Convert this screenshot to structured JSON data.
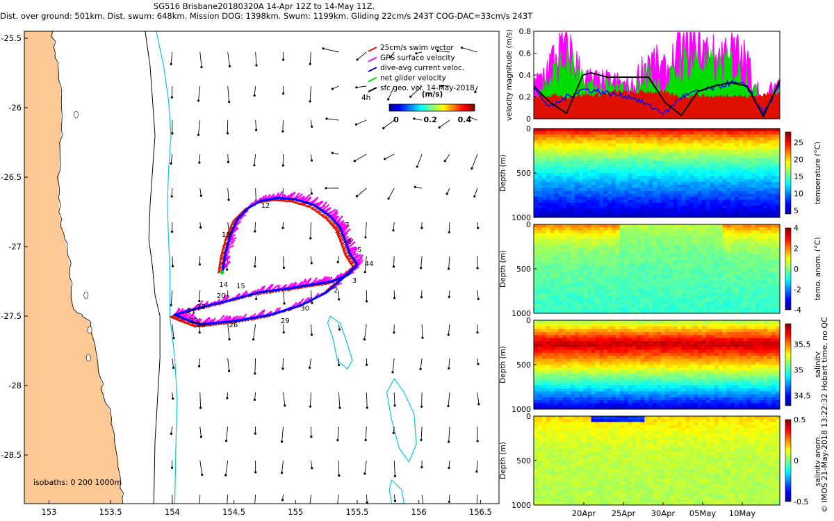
{
  "title_lines": [
    "SG516 Brisbane20180320A 14-Apr 12Z to 14-May 11Z.",
    "Dist. over ground: 501km. Dist. swum: 648km. Mission DOG: 1398km. Swum: 1199km. Gliding 22cm/s 243T COG-DAC=33cm/s 243T"
  ],
  "credit": "© IMOS 21-May-2018 13:22:32 Hobart time. no QC",
  "colors": {
    "land": "#fbc896",
    "coast_line": "#000000",
    "isobath_200": "#000000",
    "isobath_1000": "#00c8e6",
    "swim_vector": "#e01000",
    "gps_velocity": "#ff00ff",
    "dac": "#0000ff",
    "net_velocity": "#00dd00",
    "geo_vector": "#000000"
  },
  "chart_data": [
    {
      "type": "map",
      "name": "track-map",
      "xlim": [
        152.8,
        156.65
      ],
      "ylim": [
        -28.85,
        -25.45
      ],
      "xticks": [
        153,
        153.5,
        154,
        154.5,
        155,
        155.5,
        156,
        156.5
      ],
      "yticks": [
        -25.5,
        -26,
        -26.5,
        -27,
        -27.5,
        -28,
        -28.5
      ],
      "xtick_labels": [
        "153",
        "153.5",
        "154",
        "154.5",
        "155",
        "155.5",
        "156",
        "156.5"
      ],
      "ytick_labels": [
        "-25.5",
        "-26",
        "-26.5",
        "-27",
        "-27.5",
        "-28",
        "-28.5"
      ],
      "legend": {
        "position": "top-right",
        "items": [
          "25cm/s swim vector",
          "GPS surface velocity",
          "dive-avg current veloc.",
          "net glider velocity",
          "sfc geo. vel. 14-May-2018"
        ],
        "note": "4h"
      },
      "colorbar": {
        "label": "(m/s)",
        "ticks": [
          0,
          0.2,
          0.4
        ],
        "tick_labels": [
          "0",
          "0.2",
          "0.4"
        ],
        "range": [
          0,
          0.5
        ]
      },
      "isobath_label": "isobaths: 0   200  1000m",
      "coastline": [
        [
          153.03,
          -25.45
        ],
        [
          153.05,
          -25.6
        ],
        [
          153.08,
          -25.75
        ],
        [
          153.1,
          -25.95
        ],
        [
          153.1,
          -26.15
        ],
        [
          153.09,
          -26.35
        ],
        [
          153.08,
          -26.55
        ],
        [
          153.08,
          -26.75
        ],
        [
          153.13,
          -26.95
        ],
        [
          153.15,
          -27.05
        ],
        [
          153.17,
          -27.15
        ],
        [
          153.18,
          -27.3
        ],
        [
          153.2,
          -27.45
        ],
        [
          153.27,
          -27.5
        ],
        [
          153.34,
          -27.55
        ],
        [
          153.38,
          -27.75
        ],
        [
          153.42,
          -27.95
        ],
        [
          153.45,
          -28.1
        ],
        [
          153.5,
          -28.2
        ],
        [
          153.53,
          -28.35
        ],
        [
          153.56,
          -28.55
        ],
        [
          153.58,
          -28.7
        ],
        [
          153.6,
          -28.85
        ]
      ],
      "isobath_200": [
        [
          153.78,
          -25.45
        ],
        [
          153.82,
          -25.7
        ],
        [
          153.84,
          -25.95
        ],
        [
          153.86,
          -26.2
        ],
        [
          153.84,
          -26.45
        ],
        [
          153.82,
          -26.7
        ],
        [
          153.81,
          -26.95
        ],
        [
          153.84,
          -27.15
        ],
        [
          153.86,
          -27.35
        ],
        [
          153.9,
          -27.5
        ],
        [
          153.9,
          -27.8
        ],
        [
          153.88,
          -28.1
        ],
        [
          153.86,
          -28.4
        ],
        [
          153.85,
          -28.85
        ]
      ],
      "isobath_1000": [
        [
          153.87,
          -25.45
        ],
        [
          153.93,
          -25.7
        ],
        [
          153.97,
          -25.95
        ],
        [
          153.99,
          -26.2
        ],
        [
          153.97,
          -26.45
        ],
        [
          153.96,
          -26.7
        ],
        [
          153.97,
          -26.95
        ],
        [
          153.98,
          -27.15
        ],
        [
          153.98,
          -27.35
        ],
        [
          153.98,
          -27.5
        ],
        [
          154.02,
          -27.8
        ],
        [
          154.04,
          -28.1
        ],
        [
          154.03,
          -28.4
        ],
        [
          154.02,
          -28.85
        ]
      ],
      "islands": [
        [
          [
            155.28,
            -27.5
          ],
          [
            155.36,
            -27.55
          ],
          [
            155.42,
            -27.7
          ],
          [
            155.46,
            -27.82
          ],
          [
            155.42,
            -27.88
          ],
          [
            155.34,
            -27.82
          ],
          [
            155.3,
            -27.65
          ],
          [
            155.26,
            -27.55
          ],
          [
            155.28,
            -27.5
          ]
        ],
        [
          [
            155.8,
            -27.95
          ],
          [
            155.88,
            -28.05
          ],
          [
            155.96,
            -28.2
          ],
          [
            155.98,
            -28.42
          ],
          [
            155.92,
            -28.55
          ],
          [
            155.84,
            -28.45
          ],
          [
            155.78,
            -28.25
          ],
          [
            155.74,
            -28.05
          ],
          [
            155.8,
            -27.95
          ]
        ],
        [
          [
            155.78,
            -28.68
          ],
          [
            155.86,
            -28.75
          ],
          [
            155.88,
            -28.85
          ],
          [
            155.78,
            -28.85
          ],
          [
            155.76,
            -28.75
          ],
          [
            155.78,
            -28.68
          ]
        ]
      ],
      "track": [
        [
          154.41,
          -27.17
        ],
        [
          154.43,
          -27.05
        ],
        [
          154.47,
          -26.92
        ],
        [
          154.53,
          -26.8
        ],
        [
          154.62,
          -26.72
        ],
        [
          154.72,
          -26.67
        ],
        [
          154.85,
          -26.65
        ],
        [
          155.0,
          -26.66
        ],
        [
          155.15,
          -26.7
        ],
        [
          155.28,
          -26.78
        ],
        [
          155.36,
          -26.86
        ],
        [
          155.4,
          -26.95
        ],
        [
          155.44,
          -27.05
        ],
        [
          155.5,
          -27.13
        ],
        [
          155.43,
          -27.2
        ],
        [
          155.3,
          -27.25
        ],
        [
          155.15,
          -27.27
        ],
        [
          154.95,
          -27.3
        ],
        [
          154.7,
          -27.33
        ],
        [
          154.45,
          -27.39
        ],
        [
          154.22,
          -27.44
        ],
        [
          154.02,
          -27.49
        ],
        [
          154.1,
          -27.52
        ],
        [
          154.22,
          -27.56
        ],
        [
          154.35,
          -27.55
        ],
        [
          154.55,
          -27.53
        ],
        [
          154.8,
          -27.49
        ],
        [
          155.05,
          -27.42
        ],
        [
          155.25,
          -27.33
        ],
        [
          155.38,
          -27.23
        ],
        [
          155.49,
          -27.14
        ]
      ],
      "track_labels": [
        {
          "text": "12",
          "lon": 154.72,
          "lat": -26.72
        },
        {
          "text": "13",
          "lon": 154.4,
          "lat": -26.93
        },
        {
          "text": "7",
          "lon": 155.4,
          "lat": -26.86
        },
        {
          "text": "6",
          "lon": 155.42,
          "lat": -26.98
        },
        {
          "text": "5",
          "lon": 155.5,
          "lat": -27.04
        },
        {
          "text": "44",
          "lon": 155.56,
          "lat": -27.14
        },
        {
          "text": "3",
          "lon": 155.46,
          "lat": -27.26
        },
        {
          "text": "2",
          "lon": 155.31,
          "lat": -27.33
        },
        {
          "text": "14",
          "lon": 154.38,
          "lat": -27.29
        },
        {
          "text": "15",
          "lon": 154.52,
          "lat": -27.3
        },
        {
          "text": "20",
          "lon": 154.36,
          "lat": -27.37
        },
        {
          "text": "15",
          "lon": 154.2,
          "lat": -27.45
        },
        {
          "text": "21",
          "lon": 154.12,
          "lat": -27.48
        },
        {
          "text": "23",
          "lon": 154.14,
          "lat": -27.55
        },
        {
          "text": "24",
          "lon": 154.2,
          "lat": -27.58
        },
        {
          "text": "26",
          "lon": 154.46,
          "lat": -27.58
        },
        {
          "text": "29",
          "lon": 154.88,
          "lat": -27.55
        },
        {
          "text": "30",
          "lon": 155.04,
          "lat": -27.46
        }
      ]
    },
    {
      "type": "line",
      "name": "velocity-magnitude",
      "ylabel": "velocity magnitude (m/s)",
      "ylim": [
        0,
        0.8
      ],
      "yticks": [
        0,
        0.2,
        0.4,
        0.6,
        0.8
      ],
      "ytick_labels": [
        "0",
        "0.2",
        "0.4",
        "0.6",
        "0.8"
      ],
      "xlim": [
        0,
        30
      ],
      "series": [
        {
          "name": "25cm/s swim vector",
          "color": "#e01000",
          "x": [
            0,
            2,
            4,
            6,
            8,
            10,
            12,
            14,
            16,
            18,
            20,
            22,
            24,
            26,
            28,
            30
          ],
          "y": [
            0.2,
            0.22,
            0.2,
            0.22,
            0.22,
            0.25,
            0.24,
            0.25,
            0.24,
            0.2,
            0.22,
            0.2,
            0.22,
            0.2,
            0.22,
            0.25
          ]
        },
        {
          "name": "GPS surface velocity",
          "color": "#ff00ff",
          "x": [
            0,
            2,
            4,
            6,
            8,
            10,
            12,
            14,
            16,
            18,
            20,
            22,
            24,
            26,
            28,
            30
          ],
          "y": [
            0.3,
            0.55,
            0.75,
            0.4,
            0.35,
            0.35,
            0.3,
            0.6,
            0.45,
            0.7,
            0.75,
            0.6,
            0.7,
            0.55,
            0.15,
            0.4
          ]
        },
        {
          "name": "net glider velocity",
          "color": "#00dd00",
          "x": [
            0,
            2,
            4,
            6,
            8,
            10,
            12,
            14,
            16,
            18,
            20,
            22,
            24,
            26,
            28,
            30
          ],
          "y": [
            0.25,
            0.4,
            0.6,
            0.35,
            0.3,
            0.3,
            0.25,
            0.45,
            0.3,
            0.55,
            0.6,
            0.5,
            0.55,
            0.45,
            0.1,
            0.35
          ]
        },
        {
          "name": "dive-avg current veloc.",
          "color": "#0000ff",
          "x": [
            0,
            2,
            4,
            6,
            8,
            10,
            12,
            14,
            16,
            18,
            20,
            22,
            24,
            26,
            28,
            30
          ],
          "y": [
            0.28,
            0.1,
            0.2,
            0.27,
            0.25,
            0.22,
            0.2,
            0.12,
            0.05,
            0.2,
            0.25,
            0.28,
            0.33,
            0.3,
            0.05,
            0.3
          ]
        },
        {
          "name": "sfc geo. vel.",
          "color": "#000000",
          "x": [
            0,
            2,
            4,
            6,
            7,
            9,
            12,
            14,
            16,
            18,
            20,
            22,
            24,
            26,
            28,
            30
          ],
          "y": [
            0.3,
            0.15,
            0.05,
            0.4,
            0.42,
            0.38,
            0.38,
            0.38,
            0.15,
            0.03,
            0.25,
            0.3,
            0.33,
            0.3,
            0.02,
            0.35
          ]
        }
      ]
    },
    {
      "type": "heatmap",
      "name": "temperature-section",
      "ylabel": "Depth (m)",
      "yticks": [
        0,
        500,
        1000
      ],
      "ytick_labels": [
        "0",
        "500",
        "1000"
      ],
      "colorbar_label": "temperature (°C)",
      "colorbar_ticks": [
        "5",
        "10",
        "15",
        "20",
        "25"
      ],
      "colorbar_range": [
        4,
        28
      ]
    },
    {
      "type": "heatmap",
      "name": "temperature-anomaly-section",
      "ylabel": "Depth (m)",
      "yticks": [
        0,
        500,
        1000
      ],
      "ytick_labels": [
        "0",
        "500",
        "1000"
      ],
      "colorbar_label": "temp. anom. (°C)",
      "colorbar_ticks": [
        "-4",
        "-2",
        "0",
        "2",
        "4"
      ],
      "colorbar_range": [
        -4,
        4
      ]
    },
    {
      "type": "heatmap",
      "name": "salinity-section",
      "ylabel": "Depth (m)",
      "yticks": [
        0,
        500,
        1000
      ],
      "ytick_labels": [
        "0",
        "500",
        "1000"
      ],
      "colorbar_label": "salinity",
      "colorbar_ticks": [
        "34.5",
        "35",
        "35.5"
      ],
      "colorbar_range": [
        34.3,
        35.9
      ]
    },
    {
      "type": "heatmap",
      "name": "salinity-anomaly-section",
      "ylabel": "Depth (m)",
      "yticks": [
        0,
        500,
        1000
      ],
      "ytick_labels": [
        "0",
        "500",
        "1000"
      ],
      "xtick_labels": [
        "20Apr",
        "25Apr",
        "30Apr",
        "05May",
        "10May"
      ],
      "colorbar_label": "salinity anom.",
      "colorbar_ticks": [
        "-0.5",
        "0",
        "0.5"
      ],
      "colorbar_range": [
        -0.5,
        0.5
      ]
    }
  ]
}
